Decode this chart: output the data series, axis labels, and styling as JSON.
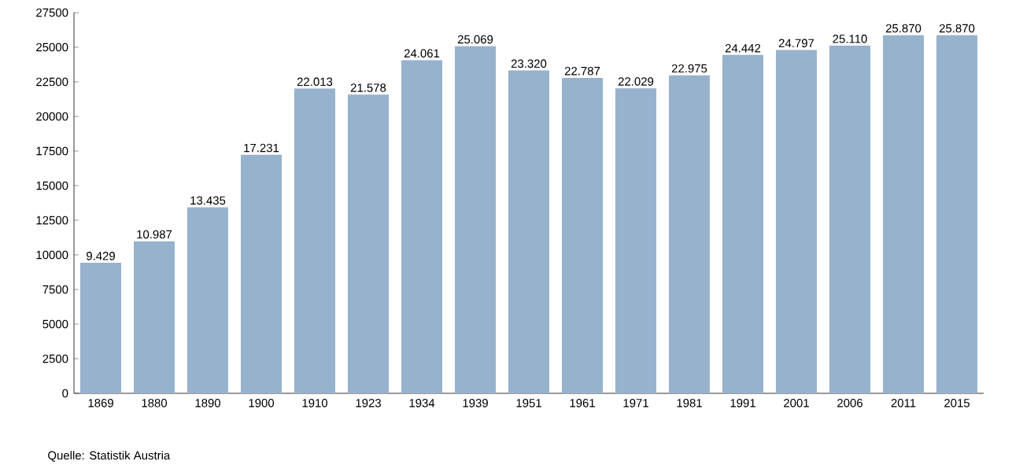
{
  "chart_data": {
    "type": "bar",
    "categories": [
      "1869",
      "1880",
      "1890",
      "1900",
      "1910",
      "1923",
      "1934",
      "1939",
      "1951",
      "1961",
      "1971",
      "1981",
      "1991",
      "2001",
      "2006",
      "2011",
      "2015"
    ],
    "values": [
      9429,
      10987,
      13435,
      17231,
      22013,
      21578,
      24061,
      25069,
      23320,
      22787,
      22029,
      22975,
      24442,
      24797,
      25110,
      25870,
      25870
    ],
    "value_labels": [
      "9.429",
      "10.987",
      "13.435",
      "17.231",
      "22.013",
      "21.578",
      "24.061",
      "25.069",
      "23.320",
      "22.787",
      "22.029",
      "22.975",
      "24.442",
      "24.797",
      "25.110",
      "25.870",
      "25.870"
    ],
    "color": "#97b2cc",
    "ylim": [
      0,
      27500
    ],
    "yticks": [
      0,
      2500,
      5000,
      7500,
      10000,
      12500,
      15000,
      17500,
      20000,
      22500,
      25000,
      27500
    ],
    "grid": false,
    "annotations": [
      "Quelle: Statistik Austria"
    ]
  }
}
